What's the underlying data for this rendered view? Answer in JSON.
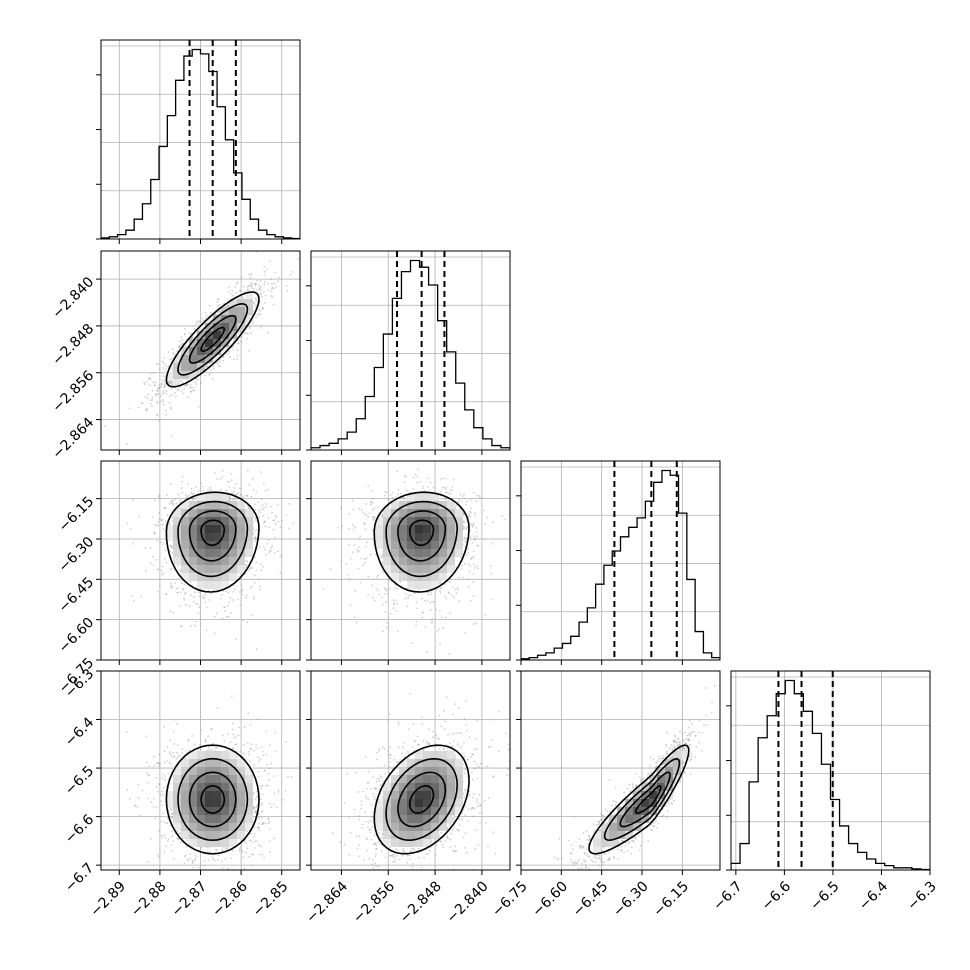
{
  "chart_data": {
    "type": "corner",
    "grid": true,
    "parameters": [
      {
        "range": [
          -2.8945,
          -2.8455
        ],
        "median": -2.867,
        "q16": -2.8727,
        "q84": -2.8613,
        "ticks": [
          -2.89,
          -2.88,
          -2.87,
          -2.86,
          -2.85
        ],
        "tick_labels": [
          "−2.89",
          "−2.88",
          "−2.87",
          "−2.86",
          "−2.85"
        ],
        "histogram": [
          0.5,
          1,
          2,
          4,
          9,
          16,
          27,
          42,
          56,
          72,
          83,
          86,
          84,
          76,
          60,
          45,
          30,
          18,
          9,
          4,
          2,
          1,
          0.5,
          0.2
        ]
      },
      {
        "range": [
          -2.8692,
          -2.8352
        ],
        "median": -2.8503,
        "q16": -2.8545,
        "q84": -2.8464,
        "ticks": [
          -2.864,
          -2.856,
          -2.848,
          -2.84
        ],
        "tick_labels": [
          "−2.864",
          "−2.856",
          "−2.848",
          "−2.840"
        ],
        "histogram": [
          1,
          2,
          3,
          5,
          8,
          14,
          24,
          37,
          52,
          68,
          80,
          85,
          82,
          74,
          58,
          44,
          30,
          18,
          10,
          5,
          2,
          1
        ]
      },
      {
        "range": [
          -6.75,
          -6.01
        ],
        "median": -6.2653,
        "q16": -6.4027,
        "q84": -6.1707,
        "ticks": [
          -6.75,
          -6.6,
          -6.45,
          -6.3,
          -6.15
        ],
        "tick_labels": [
          "−6.75",
          "−6.60",
          "−6.45",
          "−6.30",
          "−6.15"
        ],
        "histogram": [
          0.5,
          1,
          2,
          3,
          5,
          7,
          10,
          16,
          22,
          32,
          40,
          46,
          52,
          56,
          60,
          67,
          75,
          80,
          78,
          62,
          34,
          12,
          3,
          1
        ]
      },
      {
        "range": [
          -6.71,
          -6.3
        ],
        "median": -6.5647,
        "q16": -6.6123,
        "q84": -6.5004,
        "ticks": [
          -6.7,
          -6.6,
          -6.5,
          -6.4,
          -6.3
        ],
        "tick_labels": [
          "−6.7",
          "−6.6",
          "−6.5",
          "−6.4",
          "−6.3"
        ],
        "histogram": [
          3,
          12,
          40,
          60,
          70,
          80,
          86,
          80,
          72,
          62,
          48,
          32,
          20,
          12,
          8,
          5,
          3,
          2,
          1,
          1,
          0.5,
          0.2
        ]
      }
    ],
    "pairs": [
      {
        "x": 0,
        "y": 1,
        "correlation": 0.85
      },
      {
        "x": 0,
        "y": 2,
        "correlation": 0.05
      },
      {
        "x": 1,
        "y": 2,
        "correlation": 0.05
      },
      {
        "x": 0,
        "y": 3,
        "correlation": 0.0
      },
      {
        "x": 1,
        "y": 3,
        "correlation": 0.35
      },
      {
        "x": 2,
        "y": 3,
        "correlation": 0.9
      }
    ]
  }
}
